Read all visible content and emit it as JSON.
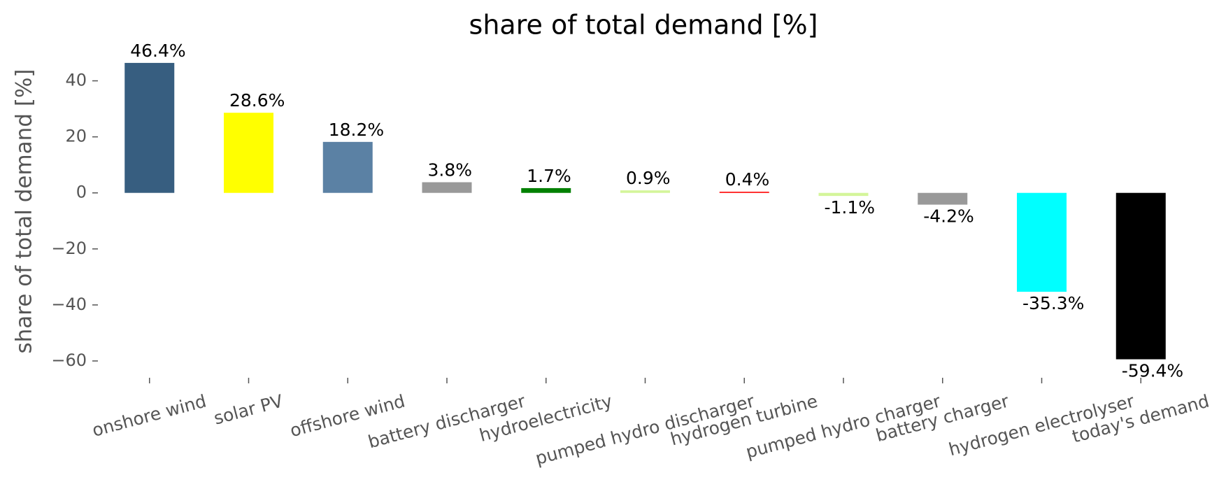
{
  "chart_data": {
    "type": "bar",
    "title": "share of total demand [%]",
    "ylabel": "share of total demand [%]",
    "categories": [
      "onshore wind",
      "solar PV",
      "offshore wind",
      "battery discharger",
      "hydroelectricity",
      "pumped hydro discharger",
      "hydrogen turbine",
      "pumped hydro charger",
      "battery charger",
      "hydrogen electrolyser",
      "today's demand"
    ],
    "values": [
      46.4,
      28.6,
      18.2,
      3.8,
      1.7,
      0.9,
      0.4,
      -1.1,
      -4.2,
      -35.3,
      -59.4
    ],
    "value_labels": [
      "46.4%",
      "28.6%",
      "18.2%",
      "3.8%",
      "1.7%",
      "0.9%",
      "0.4%",
      "-1.1%",
      "-4.2%",
      "-35.3%",
      "-59.4%"
    ],
    "colors": [
      "#375e80",
      "#ffff00",
      "#5b81a4",
      "#999999",
      "#008000",
      "#d4f59a",
      "#ff0000",
      "#d4f59a",
      "#999999",
      "#00ffff",
      "#000000"
    ],
    "ylim": [
      -66,
      50
    ],
    "yticks": [
      {
        "value": -60,
        "label": "−60"
      },
      {
        "value": -40,
        "label": "−40"
      },
      {
        "value": -20,
        "label": "−20"
      },
      0,
      20,
      40
    ],
    "grid": false
  }
}
